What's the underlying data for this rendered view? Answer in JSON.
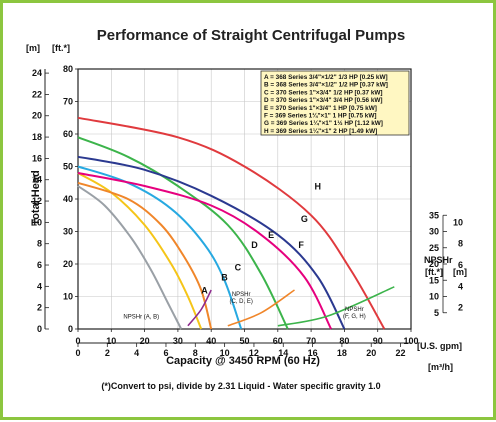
{
  "chart_data": {
    "type": "line",
    "title": "Performance of Straight Centrifugal Pumps",
    "x_axis": {
      "label": "Capacity @ 3450 RPM (60 Hz)",
      "primary_unit": "[U.S. gpm]",
      "primary_range": [
        0,
        100
      ],
      "primary_ticks": [
        0,
        10,
        20,
        30,
        40,
        50,
        60,
        70,
        80,
        90,
        100
      ],
      "secondary_unit": "[m³/h]",
      "secondary_ticks": [
        0,
        2,
        4,
        6,
        8,
        10,
        12,
        14,
        16,
        18,
        20,
        22
      ]
    },
    "y_axis": {
      "label": "Total Head",
      "ft_unit": "[ft.*]",
      "ft_range": [
        0,
        80
      ],
      "ft_ticks": [
        0,
        10,
        20,
        30,
        40,
        50,
        60,
        70,
        80
      ],
      "m_unit": "[m]",
      "m_ticks": [
        0,
        2,
        4,
        6,
        8,
        10,
        12,
        14,
        16,
        18,
        20,
        22,
        24
      ]
    },
    "npsh_axis": {
      "label": "NPSHr",
      "ft_unit": "[ft.*]",
      "m_unit": "[m]",
      "ft_ticks": [
        5,
        10,
        15,
        20,
        25,
        30,
        35
      ],
      "m_ticks": [
        2,
        4,
        6,
        8,
        10
      ]
    },
    "grid": true,
    "legend_position": "top-right",
    "legend": [
      "A = 368 Series 3/4\"×1/2\" 1/3 HP [0.25 kW]",
      "B = 368 Series 3/4\"×1/2\" 1/2 HP [0.37 kW]",
      "C = 370 Series 1\"×3/4\" 1/2 HP [0.37 kW]",
      "D = 370 Series 1\"×3/4\" 3/4 HP [0.56 kW]",
      "E = 370 Series 1\"×3/4\" 1 HP [0.75 kW]",
      "F = 369 Series 1¼\"×1\" 1 HP [0.75 kW]",
      "G = 369 Series 1¼\"×1\" 1½ HP [1.12 kW]",
      "H = 369 Series 1¼\"×1\" 2 HP [1.49 kW]"
    ],
    "series": [
      {
        "name": "A",
        "color": "#9aa0a6",
        "x": [
          0,
          8,
          16,
          22,
          27,
          31
        ],
        "y": [
          44,
          38,
          28,
          18,
          8,
          0
        ]
      },
      {
        "name": "B",
        "color": "#f5c518",
        "x": [
          0,
          10,
          20,
          28,
          33,
          37
        ],
        "y": [
          48,
          42,
          32,
          20,
          10,
          0
        ]
      },
      {
        "name": "C",
        "color": "#f0862a",
        "x": [
          0,
          15,
          25,
          32,
          37,
          40
        ],
        "y": [
          45,
          40,
          32,
          22,
          12,
          0
        ]
      },
      {
        "name": "D",
        "color": "#27a9e1",
        "x": [
          0,
          15,
          28,
          38,
          44,
          49
        ],
        "y": [
          50,
          45,
          37,
          26,
          15,
          0
        ]
      },
      {
        "name": "E",
        "color": "#3cb44b",
        "x": [
          0,
          15,
          30,
          45,
          55,
          63
        ],
        "y": [
          59,
          53,
          44,
          32,
          17,
          0
        ]
      },
      {
        "name": "F",
        "color": "#e6007e",
        "x": [
          0,
          20,
          40,
          55,
          68,
          76
        ],
        "y": [
          48,
          44,
          38,
          29,
          16,
          0
        ]
      },
      {
        "name": "G",
        "color": "#2b3990",
        "x": [
          0,
          20,
          40,
          60,
          72,
          80
        ],
        "y": [
          53,
          49,
          41,
          29,
          16,
          0
        ]
      },
      {
        "name": "H",
        "color": "#e03a3e",
        "x": [
          0,
          30,
          50,
          70,
          82,
          92
        ],
        "y": [
          65,
          59,
          50,
          35,
          18,
          0
        ]
      }
    ],
    "npsh_series": [
      {
        "name": "NPSHr (A, B)",
        "color": "#8e2a8e",
        "x": [
          33,
          37,
          40
        ],
        "y": [
          1,
          6,
          12
        ]
      },
      {
        "name": "NPSHr (C, D, E)",
        "color": "#f0862a",
        "x": [
          45,
          55,
          65
        ],
        "y": [
          1,
          5,
          12
        ]
      },
      {
        "name": "NPSHr (F, G, H)",
        "color": "#3cb44b",
        "x": [
          60,
          75,
          95
        ],
        "y": [
          1,
          4,
          13
        ]
      }
    ],
    "curve_labels": [
      "A",
      "B",
      "C",
      "D",
      "E",
      "F",
      "G",
      "H"
    ],
    "npsh_labels": [
      {
        "lines": [
          "NPSHr (A, B)"
        ]
      },
      {
        "lines": [
          "NPSHr",
          "(C, D, E)"
        ]
      },
      {
        "lines": [
          "NPSHr",
          "(F, G, H)"
        ]
      }
    ],
    "footnote": "(*)Convert to psi, divide by 2.31    Liquid - Water specific gravity 1.0"
  }
}
